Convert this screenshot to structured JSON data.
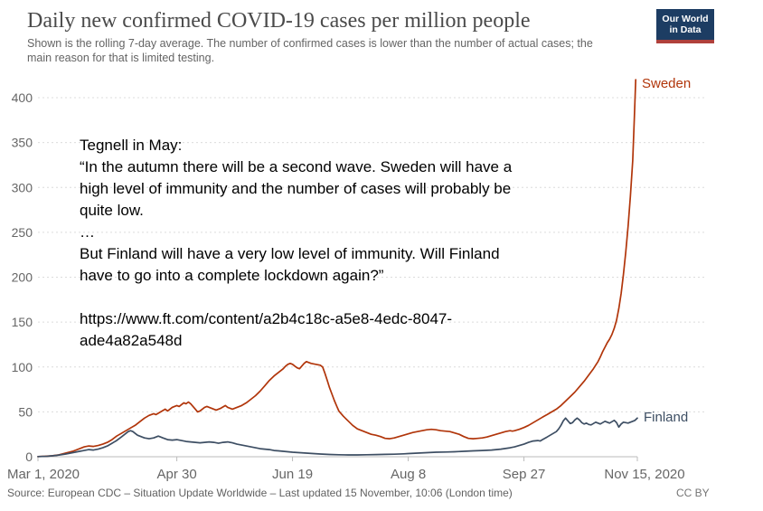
{
  "header": {
    "title": "Daily new confirmed COVID-19 cases per million people",
    "subtitle_line1": "Shown is the rolling 7-day average. The number of confirmed cases is lower than the number of actual cases; the",
    "subtitle_line2": "main reason for that is limited testing.",
    "logo": {
      "line1": "Our World",
      "line2": "in Data",
      "background_color": "#1d3d63",
      "stripe_color": "#b0413c"
    }
  },
  "annotation": {
    "lines": [
      "Tegnell in May:",
      "“In the autumn there will be a second wave. Sweden will have a",
      "high level of immunity and the number of cases will probably be",
      "quite low.",
      "…",
      "But Finland will have a very low level of immunity. Will Finland",
      "have to go into a complete lockdown again?”",
      "",
      "https://www.ft.com/content/a2b4c18c-a5e8-4edc-8047-",
      "ade4a82a548d"
    ]
  },
  "chart_data": {
    "type": "line",
    "title": "Daily new confirmed COVID-19 cases per million people",
    "subtitle": "Shown is the rolling 7-day average. The number of confirmed cases is lower than the number of actual cases; the main reason for that is limited testing.",
    "x_unit": "days since Mar 1, 2020",
    "grid": true,
    "legend_position": "line-end-labels",
    "x_axis": {
      "range_days": [
        0,
        259
      ],
      "tick_days": [
        0,
        60,
        110,
        160,
        210,
        259
      ],
      "tick_labels": [
        "Mar 1, 2020",
        "Apr 30",
        "Jun 19",
        "Aug 8",
        "Sep 27",
        "Nov 15, 2020"
      ]
    },
    "y_axis": {
      "range": [
        0,
        420
      ],
      "ticks": [
        0,
        50,
        100,
        150,
        200,
        250,
        300,
        350,
        400
      ]
    },
    "series": [
      {
        "name": "Sweden",
        "color": "#b1350a",
        "points": [
          [
            0,
            0.2
          ],
          [
            3,
            0.5
          ],
          [
            6,
            1
          ],
          [
            9,
            2
          ],
          [
            12,
            4
          ],
          [
            15,
            6
          ],
          [
            18,
            9
          ],
          [
            20,
            11
          ],
          [
            22,
            12
          ],
          [
            24,
            11.5
          ],
          [
            26,
            12.5
          ],
          [
            28,
            14
          ],
          [
            30,
            16
          ],
          [
            32,
            19
          ],
          [
            34,
            23
          ],
          [
            36,
            26
          ],
          [
            38,
            29
          ],
          [
            40,
            32
          ],
          [
            42,
            35
          ],
          [
            44,
            39
          ],
          [
            46,
            43
          ],
          [
            48,
            46
          ],
          [
            50,
            48
          ],
          [
            51,
            47
          ],
          [
            53,
            50
          ],
          [
            55,
            53
          ],
          [
            56,
            51
          ],
          [
            58,
            55
          ],
          [
            60,
            57
          ],
          [
            61,
            56
          ],
          [
            62,
            58
          ],
          [
            63,
            60
          ],
          [
            64,
            59
          ],
          [
            65,
            61
          ],
          [
            66,
            59
          ],
          [
            67,
            56
          ],
          [
            68,
            53
          ],
          [
            69,
            50
          ],
          [
            70,
            51
          ],
          [
            72,
            55
          ],
          [
            73,
            56
          ],
          [
            75,
            54
          ],
          [
            77,
            52
          ],
          [
            79,
            54
          ],
          [
            81,
            57
          ],
          [
            82,
            55
          ],
          [
            84,
            53
          ],
          [
            86,
            55
          ],
          [
            88,
            57
          ],
          [
            90,
            60
          ],
          [
            92,
            64
          ],
          [
            94,
            68
          ],
          [
            96,
            73
          ],
          [
            98,
            79
          ],
          [
            100,
            85
          ],
          [
            102,
            90
          ],
          [
            104,
            94
          ],
          [
            106,
            98
          ],
          [
            107,
            101
          ],
          [
            108,
            103
          ],
          [
            109,
            104
          ],
          [
            110,
            103
          ],
          [
            111,
            101
          ],
          [
            112,
            99
          ],
          [
            113,
            98
          ],
          [
            114,
            101
          ],
          [
            115,
            104
          ],
          [
            116,
            106
          ],
          [
            117,
            105
          ],
          [
            118,
            104
          ],
          [
            120,
            103
          ],
          [
            122,
            102
          ],
          [
            123,
            100
          ],
          [
            124,
            93
          ],
          [
            125,
            85
          ],
          [
            126,
            77
          ],
          [
            127,
            70
          ],
          [
            128,
            63
          ],
          [
            129,
            57
          ],
          [
            130,
            51
          ],
          [
            132,
            45
          ],
          [
            134,
            40
          ],
          [
            136,
            35
          ],
          [
            138,
            31
          ],
          [
            140,
            29
          ],
          [
            142,
            27
          ],
          [
            144,
            25
          ],
          [
            146,
            24
          ],
          [
            148,
            22.5
          ],
          [
            150,
            20.5
          ],
          [
            152,
            20
          ],
          [
            154,
            21
          ],
          [
            156,
            22.5
          ],
          [
            158,
            24
          ],
          [
            160,
            25.5
          ],
          [
            162,
            27
          ],
          [
            164,
            28
          ],
          [
            166,
            29
          ],
          [
            168,
            30
          ],
          [
            170,
            30.5
          ],
          [
            172,
            30
          ],
          [
            174,
            29
          ],
          [
            176,
            28.5
          ],
          [
            178,
            28
          ],
          [
            180,
            26.5
          ],
          [
            182,
            25
          ],
          [
            184,
            22.5
          ],
          [
            186,
            20.5
          ],
          [
            188,
            20
          ],
          [
            190,
            20.5
          ],
          [
            192,
            21
          ],
          [
            194,
            22
          ],
          [
            196,
            23.5
          ],
          [
            198,
            25
          ],
          [
            200,
            26.5
          ],
          [
            202,
            28
          ],
          [
            204,
            29
          ],
          [
            205,
            28.5
          ],
          [
            206,
            29
          ],
          [
            208,
            30.5
          ],
          [
            210,
            32.5
          ],
          [
            212,
            35
          ],
          [
            214,
            38
          ],
          [
            216,
            41
          ],
          [
            218,
            44
          ],
          [
            220,
            47
          ],
          [
            222,
            50
          ],
          [
            224,
            53
          ],
          [
            226,
            57
          ],
          [
            228,
            62
          ],
          [
            230,
            67
          ],
          [
            232,
            72
          ],
          [
            234,
            78
          ],
          [
            236,
            84
          ],
          [
            238,
            91
          ],
          [
            240,
            98
          ],
          [
            241,
            102
          ],
          [
            242,
            106
          ],
          [
            243,
            111
          ],
          [
            244,
            117
          ],
          [
            245,
            122
          ],
          [
            246,
            127
          ],
          [
            247,
            131
          ],
          [
            248,
            136
          ],
          [
            249,
            143
          ],
          [
            250,
            152
          ],
          [
            251,
            165
          ],
          [
            252,
            182
          ],
          [
            253,
            203
          ],
          [
            254,
            228
          ],
          [
            255,
            257
          ],
          [
            256,
            290
          ],
          [
            257,
            330
          ],
          [
            257.7,
            378
          ],
          [
            258.3,
            420
          ]
        ]
      },
      {
        "name": "Finland",
        "color": "#3d4e63",
        "points": [
          [
            0,
            0.2
          ],
          [
            4,
            0.5
          ],
          [
            8,
            1.5
          ],
          [
            12,
            3
          ],
          [
            15,
            4.5
          ],
          [
            18,
            6
          ],
          [
            20,
            7
          ],
          [
            22,
            8
          ],
          [
            24,
            7.5
          ],
          [
            26,
            8.5
          ],
          [
            28,
            10
          ],
          [
            30,
            12
          ],
          [
            32,
            15
          ],
          [
            34,
            18
          ],
          [
            36,
            22
          ],
          [
            38,
            26
          ],
          [
            39,
            28
          ],
          [
            40,
            29
          ],
          [
            41,
            28
          ],
          [
            42,
            26
          ],
          [
            43,
            24
          ],
          [
            44,
            23
          ],
          [
            45,
            22
          ],
          [
            46,
            21
          ],
          [
            48,
            20
          ],
          [
            50,
            21
          ],
          [
            52,
            23
          ],
          [
            53,
            22
          ],
          [
            54,
            21
          ],
          [
            56,
            19
          ],
          [
            58,
            18.5
          ],
          [
            60,
            19
          ],
          [
            62,
            18
          ],
          [
            64,
            17
          ],
          [
            66,
            16.5
          ],
          [
            68,
            16
          ],
          [
            70,
            15.5
          ],
          [
            72,
            16
          ],
          [
            74,
            16.5
          ],
          [
            76,
            16
          ],
          [
            78,
            15
          ],
          [
            80,
            16
          ],
          [
            82,
            16.5
          ],
          [
            84,
            15.5
          ],
          [
            86,
            14
          ],
          [
            88,
            13
          ],
          [
            90,
            12
          ],
          [
            92,
            11
          ],
          [
            94,
            10
          ],
          [
            96,
            9
          ],
          [
            98,
            8.5
          ],
          [
            100,
            8
          ],
          [
            102,
            7
          ],
          [
            104,
            6.5
          ],
          [
            106,
            6
          ],
          [
            108,
            5.5
          ],
          [
            110,
            5
          ],
          [
            113,
            4.5
          ],
          [
            116,
            4
          ],
          [
            119,
            3.5
          ],
          [
            122,
            3
          ],
          [
            126,
            2.5
          ],
          [
            130,
            2.2
          ],
          [
            134,
            2
          ],
          [
            138,
            2
          ],
          [
            142,
            2.2
          ],
          [
            146,
            2.4
          ],
          [
            150,
            2.6
          ],
          [
            154,
            2.8
          ],
          [
            158,
            3.2
          ],
          [
            160,
            3.5
          ],
          [
            164,
            4
          ],
          [
            168,
            4.5
          ],
          [
            172,
            5
          ],
          [
            176,
            5.2
          ],
          [
            180,
            5.5
          ],
          [
            184,
            6
          ],
          [
            188,
            6.5
          ],
          [
            192,
            7
          ],
          [
            196,
            7.5
          ],
          [
            200,
            8.5
          ],
          [
            204,
            10
          ],
          [
            206,
            11
          ],
          [
            208,
            12.5
          ],
          [
            210,
            14
          ],
          [
            212,
            16
          ],
          [
            214,
            17.5
          ],
          [
            216,
            18
          ],
          [
            217,
            17.5
          ],
          [
            218,
            19
          ],
          [
            220,
            22
          ],
          [
            222,
            25
          ],
          [
            224,
            28
          ],
          [
            225,
            31
          ],
          [
            226,
            35
          ],
          [
            227,
            40
          ],
          [
            228,
            43
          ],
          [
            229,
            40
          ],
          [
            230,
            37
          ],
          [
            231,
            38
          ],
          [
            232,
            41
          ],
          [
            233,
            43
          ],
          [
            234,
            41
          ],
          [
            235,
            38
          ],
          [
            236,
            36.5
          ],
          [
            237,
            37.5
          ],
          [
            238,
            36
          ],
          [
            239,
            35.5
          ],
          [
            240,
            37
          ],
          [
            241,
            38.5
          ],
          [
            242,
            37.5
          ],
          [
            243,
            36.5
          ],
          [
            244,
            38
          ],
          [
            245,
            39.5
          ],
          [
            246,
            38.5
          ],
          [
            247,
            37.5
          ],
          [
            248,
            39
          ],
          [
            249,
            40.5
          ],
          [
            250,
            38
          ],
          [
            251,
            33
          ],
          [
            252,
            36.5
          ],
          [
            253,
            38.5
          ],
          [
            254,
            38
          ],
          [
            255,
            37.5
          ],
          [
            256,
            38.5
          ],
          [
            257,
            39.5
          ],
          [
            258,
            40.5
          ],
          [
            259,
            43
          ]
        ]
      }
    ]
  },
  "footer": {
    "source": "Source: European CDC – Situation Update Worldwide – Last updated 15 November, 10:06 (London time)",
    "license": "CC BY"
  }
}
